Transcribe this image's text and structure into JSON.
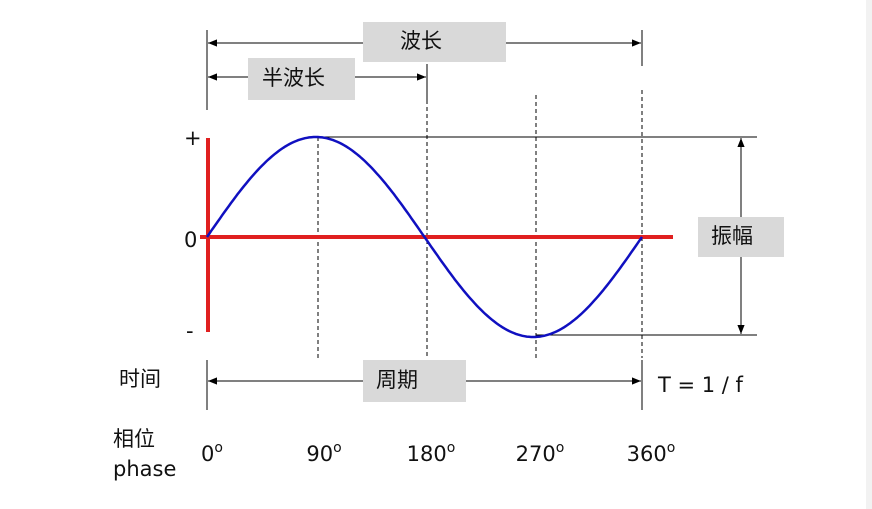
{
  "wavelength": "波长",
  "half_wavelength": "半波长",
  "amplitude_axis": {
    "plus": "+",
    "zero": "0",
    "minus": "-"
  },
  "amplitude": "振幅",
  "time": "时间",
  "period": "周期",
  "period_formula": "T = 1 / f",
  "phase_title": {
    "zh": "相位",
    "en": "phase"
  },
  "phase_labels": [
    "0",
    "90",
    "180",
    "270",
    "360"
  ],
  "degree_mark": "o"
}
